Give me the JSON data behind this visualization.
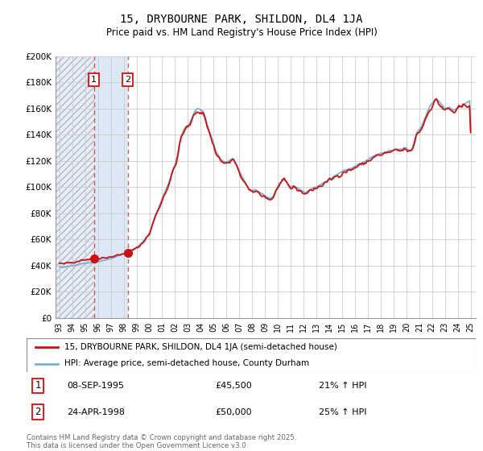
{
  "title": "15, DRYBOURNE PARK, SHILDON, DL4 1JA",
  "subtitle": "Price paid vs. HM Land Registry's House Price Index (HPI)",
  "ylim": [
    0,
    200000
  ],
  "yticks": [
    0,
    20000,
    40000,
    60000,
    80000,
    100000,
    120000,
    140000,
    160000,
    180000,
    200000
  ],
  "ytick_labels": [
    "£0",
    "£20K",
    "£40K",
    "£60K",
    "£80K",
    "£100K",
    "£120K",
    "£140K",
    "£160K",
    "£180K",
    "£200K"
  ],
  "line1_color": "#cc1111",
  "line2_color": "#7aafd4",
  "transaction1_date": 1995.68,
  "transaction1_price": 45500,
  "transaction2_date": 1998.31,
  "transaction2_price": 50000,
  "legend_line1": "15, DRYBOURNE PARK, SHILDON, DL4 1JA (semi-detached house)",
  "legend_line2": "HPI: Average price, semi-detached house, County Durham",
  "copyright": "Contains HM Land Registry data © Crown copyright and database right 2025.\nThis data is licensed under the Open Government Licence v3.0.",
  "hatch_color": "#d8dce8",
  "band_color": "#dce8f5",
  "bg_color": "#ffffff",
  "grid_color": "#cccccc",
  "hpi_monthly": {
    "years": [
      1993.0,
      1993.083,
      1993.167,
      1993.25,
      1993.333,
      1993.417,
      1993.5,
      1993.583,
      1993.667,
      1993.75,
      1993.833,
      1993.917,
      1994.0,
      1994.083,
      1994.167,
      1994.25,
      1994.333,
      1994.417,
      1994.5,
      1994.583,
      1994.667,
      1994.75,
      1994.833,
      1994.917,
      1995.0,
      1995.083,
      1995.167,
      1995.25,
      1995.333,
      1995.417,
      1995.5,
      1995.583,
      1995.667,
      1995.75,
      1995.833,
      1995.917,
      1996.0,
      1996.083,
      1996.167,
      1996.25,
      1996.333,
      1996.417,
      1996.5,
      1996.583,
      1996.667,
      1996.75,
      1996.833,
      1996.917,
      1997.0,
      1997.083,
      1997.167,
      1997.25,
      1997.333,
      1997.417,
      1997.5,
      1997.583,
      1997.667,
      1997.75,
      1997.833,
      1997.917,
      1998.0,
      1998.083,
      1998.167,
      1998.25,
      1998.333,
      1998.417,
      1998.5,
      1998.583,
      1998.667,
      1998.75,
      1998.833,
      1998.917,
      1999.0,
      1999.083,
      1999.167,
      1999.25,
      1999.333,
      1999.417,
      1999.5,
      1999.583,
      1999.667,
      1999.75,
      1999.833,
      1999.917,
      2000.0,
      2000.083,
      2000.167,
      2000.25,
      2000.333,
      2000.417,
      2000.5,
      2000.583,
      2000.667,
      2000.75,
      2000.833,
      2000.917,
      2001.0,
      2001.083,
      2001.167,
      2001.25,
      2001.333,
      2001.417,
      2001.5,
      2001.583,
      2001.667,
      2001.75,
      2001.833,
      2001.917,
      2002.0,
      2002.083,
      2002.167,
      2002.25,
      2002.333,
      2002.417,
      2002.5,
      2002.583,
      2002.667,
      2002.75,
      2002.833,
      2002.917,
      2003.0,
      2003.083,
      2003.167,
      2003.25,
      2003.333,
      2003.417,
      2003.5,
      2003.583,
      2003.667,
      2003.75,
      2003.833,
      2003.917,
      2004.0,
      2004.083,
      2004.167,
      2004.25,
      2004.333,
      2004.417,
      2004.5,
      2004.583,
      2004.667,
      2004.75,
      2004.833,
      2004.917,
      2005.0,
      2005.083,
      2005.167,
      2005.25,
      2005.333,
      2005.417,
      2005.5,
      2005.583,
      2005.667,
      2005.75,
      2005.833,
      2005.917,
      2006.0,
      2006.083,
      2006.167,
      2006.25,
      2006.333,
      2006.417,
      2006.5,
      2006.583,
      2006.667,
      2006.75,
      2006.833,
      2006.917,
      2007.0,
      2007.083,
      2007.167,
      2007.25,
      2007.333,
      2007.417,
      2007.5,
      2007.583,
      2007.667,
      2007.75,
      2007.833,
      2007.917,
      2008.0,
      2008.083,
      2008.167,
      2008.25,
      2008.333,
      2008.417,
      2008.5,
      2008.583,
      2008.667,
      2008.75,
      2008.833,
      2008.917,
      2009.0,
      2009.083,
      2009.167,
      2009.25,
      2009.333,
      2009.417,
      2009.5,
      2009.583,
      2009.667,
      2009.75,
      2009.833,
      2009.917,
      2010.0,
      2010.083,
      2010.167,
      2010.25,
      2010.333,
      2010.417,
      2010.5,
      2010.583,
      2010.667,
      2010.75,
      2010.833,
      2010.917,
      2011.0,
      2011.083,
      2011.167,
      2011.25,
      2011.333,
      2011.417,
      2011.5,
      2011.583,
      2011.667,
      2011.75,
      2011.833,
      2011.917,
      2012.0,
      2012.083,
      2012.167,
      2012.25,
      2012.333,
      2012.417,
      2012.5,
      2012.583,
      2012.667,
      2012.75,
      2012.833,
      2012.917,
      2013.0,
      2013.083,
      2013.167,
      2013.25,
      2013.333,
      2013.417,
      2013.5,
      2013.583,
      2013.667,
      2013.75,
      2013.833,
      2013.917,
      2014.0,
      2014.083,
      2014.167,
      2014.25,
      2014.333,
      2014.417,
      2014.5,
      2014.583,
      2014.667,
      2014.75,
      2014.833,
      2014.917,
      2015.0,
      2015.083,
      2015.167,
      2015.25,
      2015.333,
      2015.417,
      2015.5,
      2015.583,
      2015.667,
      2015.75,
      2015.833,
      2015.917,
      2016.0,
      2016.083,
      2016.167,
      2016.25,
      2016.333,
      2016.417,
      2016.5,
      2016.583,
      2016.667,
      2016.75,
      2016.833,
      2016.917,
      2017.0,
      2017.083,
      2017.167,
      2017.25,
      2017.333,
      2017.417,
      2017.5,
      2017.583,
      2017.667,
      2017.75,
      2017.833,
      2017.917,
      2018.0,
      2018.083,
      2018.167,
      2018.25,
      2018.333,
      2018.417,
      2018.5,
      2018.583,
      2018.667,
      2018.75,
      2018.833,
      2018.917,
      2019.0,
      2019.083,
      2019.167,
      2019.25,
      2019.333,
      2019.417,
      2019.5,
      2019.583,
      2019.667,
      2019.75,
      2019.833,
      2019.917,
      2020.0,
      2020.083,
      2020.167,
      2020.25,
      2020.333,
      2020.417,
      2020.5,
      2020.583,
      2020.667,
      2020.75,
      2020.833,
      2020.917,
      2021.0,
      2021.083,
      2021.167,
      2021.25,
      2021.333,
      2021.417,
      2021.5,
      2021.583,
      2021.667,
      2021.75,
      2021.833,
      2021.917,
      2022.0,
      2022.083,
      2022.167,
      2022.25,
      2022.333,
      2022.417,
      2022.5,
      2022.583,
      2022.667,
      2022.75,
      2022.833,
      2022.917,
      2023.0,
      2023.083,
      2023.167,
      2023.25,
      2023.333,
      2023.417,
      2023.5,
      2023.583,
      2023.667,
      2023.75,
      2023.833,
      2023.917,
      2024.0,
      2024.083,
      2024.167,
      2024.25,
      2024.333,
      2024.417,
      2024.5,
      2024.583,
      2024.667,
      2024.75,
      2024.833,
      2024.917,
      2025.0
    ],
    "values": [
      39200,
      39000,
      38800,
      38600,
      38700,
      38900,
      39100,
      39300,
      39500,
      39600,
      39700,
      39800,
      39900,
      40000,
      40100,
      40300,
      40500,
      40700,
      40900,
      41100,
      41300,
      41500,
      41600,
      41700,
      41800,
      41900,
      42000,
      42100,
      42200,
      42300,
      42400,
      42500,
      42600,
      42700,
      42800,
      42900,
      43000,
      43200,
      43400,
      43600,
      43800,
      44000,
      44200,
      44400,
      44600,
      44800,
      45000,
      45200,
      45400,
      45700,
      46000,
      46300,
      46600,
      46900,
      47200,
      47500,
      47800,
      48100,
      48400,
      48700,
      49000,
      49400,
      49800,
      50200,
      50600,
      51000,
      51400,
      51800,
      52200,
      52600,
      53000,
      53400,
      53800,
      54400,
      55000,
      55800,
      56600,
      57500,
      58500,
      59500,
      60500,
      61500,
      62500,
      63500,
      65000,
      67000,
      69500,
      72000,
      74500,
      77000,
      79000,
      81000,
      83000,
      85000,
      87000,
      89000,
      91000,
      93000,
      95000,
      97000,
      99000,
      101000,
      103000,
      105500,
      108000,
      110500,
      113000,
      115000,
      117000,
      120000,
      124000,
      128000,
      132000,
      136000,
      139000,
      141500,
      143500,
      145000,
      146000,
      146500,
      147000,
      148000,
      149500,
      151000,
      153000,
      155000,
      157000,
      158500,
      159500,
      160000,
      160000,
      159500,
      159000,
      158500,
      158000,
      156500,
      154000,
      151000,
      148000,
      145500,
      143000,
      140500,
      138000,
      135500,
      133000,
      130000,
      128000,
      126500,
      125000,
      123500,
      122000,
      121000,
      120500,
      120000,
      119500,
      119000,
      119000,
      119500,
      120000,
      120500,
      121000,
      121500,
      122000,
      121000,
      119500,
      117500,
      115500,
      113500,
      112000,
      110500,
      109000,
      107500,
      106000,
      104500,
      103000,
      101500,
      100000,
      98500,
      97500,
      97000,
      97000,
      97500,
      98000,
      98000,
      97500,
      97000,
      96500,
      96000,
      95500,
      95000,
      94500,
      94000,
      93500,
      93000,
      92500,
      92000,
      91500,
      91500,
      92000,
      92500,
      93500,
      95000,
      97000,
      99000,
      101000,
      102500,
      103500,
      104000,
      104500,
      105000,
      105500,
      105000,
      104000,
      103000,
      102000,
      101000,
      100000,
      100500,
      101000,
      101000,
      100500,
      100000,
      99500,
      99000,
      98500,
      98000,
      97500,
      97000,
      96500,
      96000,
      96000,
      96500,
      97000,
      97500,
      98000,
      98500,
      99000,
      99500,
      100000,
      100000,
      100000,
      100500,
      101000,
      101500,
      102000,
      102500,
      103000,
      103500,
      104000,
      104500,
      105000,
      105500,
      106000,
      106500,
      107000,
      107500,
      108000,
      108500,
      109000,
      109500,
      110000,
      110500,
      111000,
      111500,
      112000,
      112500,
      113000,
      113000,
      113000,
      113500,
      114000,
      114000,
      114000,
      114500,
      115000,
      115500,
      116000,
      116500,
      117000,
      117500,
      118000,
      118000,
      118000,
      118500,
      119000,
      119500,
      120000,
      120500,
      121000,
      121500,
      122000,
      122500,
      123000,
      123500,
      124000,
      124500,
      125000,
      125000,
      125000,
      125500,
      126000,
      126000,
      126000,
      126500,
      127000,
      127000,
      127000,
      127500,
      128000,
      128000,
      128000,
      128000,
      128000,
      128500,
      129000,
      129000,
      129000,
      129000,
      129000,
      129000,
      129000,
      129500,
      130000,
      130000,
      130000,
      129000,
      128500,
      128000,
      128000,
      129000,
      131000,
      134000,
      137000,
      140000,
      142000,
      143000,
      144000,
      145000,
      146000,
      148000,
      150000,
      152000,
      154000,
      156000,
      158000,
      160000,
      162000,
      163000,
      164000,
      165000,
      166000,
      167000,
      167500,
      167000,
      166000,
      165000,
      164000,
      163000,
      162000,
      161000,
      160000,
      160000,
      160500,
      161000,
      161000,
      160500,
      160000,
      159500,
      159000,
      159000,
      159500,
      160000,
      160500,
      161000,
      161500,
      162000,
      162500,
      163000,
      163500,
      164000,
      164500,
      165000,
      165500,
      166000,
      144000
    ]
  }
}
